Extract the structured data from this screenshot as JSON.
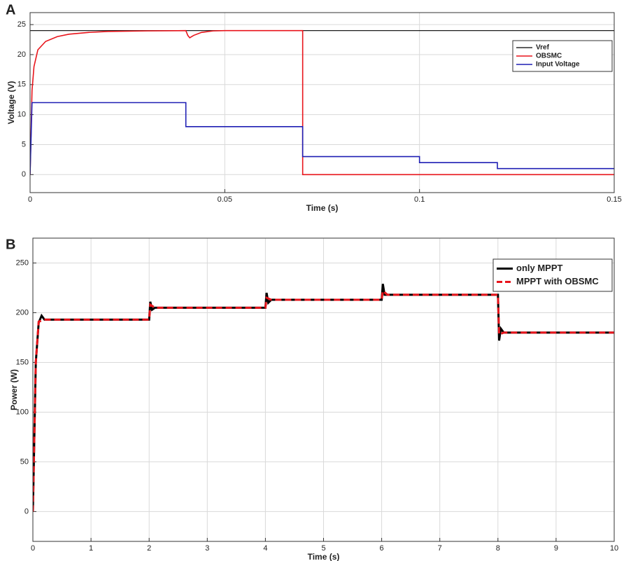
{
  "chart_data": [
    {
      "type": "line",
      "panel_label": "A",
      "xlabel": "Time (s)",
      "ylabel": "Voltage (V)",
      "xlim": [
        0,
        0.15
      ],
      "ylim": [
        -3,
        27
      ],
      "xticks": [
        0,
        0.05,
        0.1,
        0.15
      ],
      "yticks": [
        0,
        5,
        10,
        15,
        20,
        25
      ],
      "grid": true,
      "legend": "upper right",
      "series": [
        {
          "name": "Vref",
          "color": "#000000",
          "line_style": "solid",
          "x": [
            0,
            0.15
          ],
          "values": [
            24,
            24
          ]
        },
        {
          "name": "OBSMC",
          "color": "#e8141b",
          "line_style": "solid",
          "x": [
            0,
            0.0005,
            0.001,
            0.002,
            0.004,
            0.007,
            0.01,
            0.015,
            0.02,
            0.03,
            0.04,
            0.0405,
            0.041,
            0.042,
            0.044,
            0.047,
            0.05,
            0.07,
            0.07,
            0.15
          ],
          "values": [
            0,
            14,
            18,
            20.8,
            22.2,
            23,
            23.4,
            23.7,
            23.85,
            23.95,
            24,
            23.2,
            22.8,
            23.2,
            23.7,
            23.95,
            24,
            24,
            0,
            0
          ]
        },
        {
          "name": "Input Voltage",
          "color": "#1f1fb4",
          "line_style": "solid",
          "x": [
            0,
            0.0005,
            0.04,
            0.04,
            0.07,
            0.07,
            0.1,
            0.1,
            0.12,
            0.12,
            0.15
          ],
          "values": [
            0,
            12,
            12,
            8,
            8,
            3,
            3,
            2,
            2,
            1,
            1
          ]
        }
      ]
    },
    {
      "type": "line",
      "panel_label": "B",
      "xlabel": "Time (s)",
      "ylabel": "Power (W)",
      "xlim": [
        0,
        10
      ],
      "ylim": [
        -30,
        275
      ],
      "xticks": [
        0,
        1,
        2,
        3,
        4,
        5,
        6,
        7,
        8,
        9,
        10
      ],
      "yticks": [
        0,
        50,
        100,
        150,
        200,
        250
      ],
      "grid": true,
      "legend": "upper right",
      "series": [
        {
          "name": "only MPPT",
          "color": "#000000",
          "line_style": "solid",
          "x": [
            0,
            0.05,
            0.1,
            0.15,
            0.2,
            2,
            2.02,
            2.05,
            2.1,
            4,
            4.02,
            4.05,
            4.1,
            6,
            6.02,
            6.05,
            6.1,
            8,
            8.02,
            8.05,
            8.1,
            10
          ],
          "values": [
            0,
            150,
            190,
            197,
            193,
            193,
            211,
            203,
            205,
            205,
            220,
            210,
            213,
            213,
            229,
            218,
            218,
            218,
            172,
            184,
            180,
            180
          ]
        },
        {
          "name": "MPPT with OBSMC",
          "color": "#e8141b",
          "line_style": "dashed",
          "x": [
            0,
            0.05,
            0.1,
            0.2,
            2,
            2.02,
            2.1,
            4,
            4.02,
            4.1,
            6,
            6.02,
            6.1,
            8,
            8.02,
            8.1,
            10
          ],
          "values": [
            0,
            150,
            191,
            193,
            193,
            208,
            205,
            205,
            215,
            213,
            213,
            222,
            218,
            218,
            178,
            180,
            180
          ]
        }
      ]
    }
  ]
}
